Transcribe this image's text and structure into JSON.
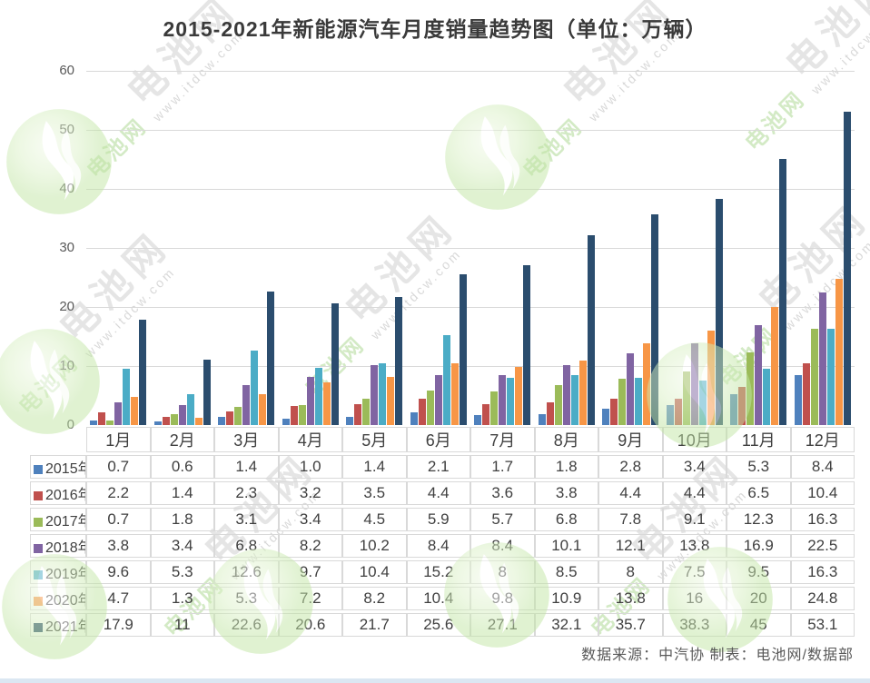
{
  "title": "2015-2021年新能源汽车月度销量趋势图（单位：万辆）",
  "chart_data": {
    "type": "bar",
    "title": "2015-2021年新能源汽车月度销量趋势图",
    "unit": "万辆",
    "categories": [
      "1月",
      "2月",
      "3月",
      "4月",
      "5月",
      "6月",
      "7月",
      "8月",
      "9月",
      "10月",
      "11月",
      "12月"
    ],
    "series": [
      {
        "name": "2015年",
        "color": "#4F81BD",
        "values": [
          0.7,
          0.6,
          1.4,
          1.0,
          1.4,
          2.1,
          1.7,
          1.8,
          2.8,
          3.4,
          5.3,
          8.4
        ]
      },
      {
        "name": "2016年",
        "color": "#C0504D",
        "values": [
          2.2,
          1.4,
          2.3,
          3.2,
          3.5,
          4.4,
          3.6,
          3.8,
          4.4,
          4.4,
          6.5,
          10.4
        ]
      },
      {
        "name": "2017年",
        "color": "#9BBB59",
        "values": [
          0.7,
          1.8,
          3.1,
          3.4,
          4.5,
          5.9,
          5.7,
          6.8,
          7.8,
          9.1,
          12.3,
          16.3
        ]
      },
      {
        "name": "2018年",
        "color": "#8064A2",
        "values": [
          3.8,
          3.4,
          6.8,
          8.2,
          10.2,
          8.4,
          8.4,
          10.1,
          12.1,
          13.8,
          16.9,
          22.5
        ]
      },
      {
        "name": "2019年",
        "color": "#4BACC6",
        "values": [
          9.6,
          5.3,
          12.6,
          9.7,
          10.4,
          15.2,
          8,
          8.5,
          8,
          7.5,
          9.5,
          16.3
        ]
      },
      {
        "name": "2020年",
        "color": "#F79646",
        "values": [
          4.7,
          1.3,
          5.3,
          7.2,
          8.2,
          10.4,
          9.8,
          10.9,
          13.8,
          16,
          20,
          24.8
        ]
      },
      {
        "name": "2021年",
        "color": "#2B4D6E",
        "values": [
          17.9,
          11,
          22.6,
          20.6,
          21.7,
          25.6,
          27.1,
          32.1,
          35.7,
          38.3,
          45,
          53.1
        ]
      }
    ],
    "ylim": [
      0,
      60
    ],
    "yticks": [
      0,
      10,
      20,
      30,
      40,
      50,
      60
    ],
    "grid": true,
    "legend_position": "table-left-column"
  },
  "table": {
    "display_rows": [
      [
        "0.7",
        "0.6",
        "1.4",
        "1.0",
        "1.4",
        "2.1",
        "1.7",
        "1.8",
        "2.8",
        "3.4",
        "5.3",
        "8.4"
      ],
      [
        "2.2",
        "1.4",
        "2.3",
        "3.2",
        "3.5",
        "4.4",
        "3.6",
        "3.8",
        "4.4",
        "4.4",
        "6.5",
        "10.4"
      ],
      [
        "0.7",
        "1.8",
        "3.1",
        "3.4",
        "4.5",
        "5.9",
        "5.7",
        "6.8",
        "7.8",
        "9.1",
        "12.3",
        "16.3"
      ],
      [
        "3.8",
        "3.4",
        "6.8",
        "8.2",
        "10.2",
        "8.4",
        "8.4",
        "10.1",
        "12.1",
        "13.8",
        "16.9",
        "22.5"
      ],
      [
        "9.6",
        "5.3",
        "12.6",
        "9.7",
        "10.4",
        "15.2",
        "8",
        "8.5",
        "8",
        "7.5",
        "9.5",
        "16.3"
      ],
      [
        "4.7",
        "1.3",
        "5.3",
        "7.2",
        "8.2",
        "10.4",
        "9.8",
        "10.9",
        "13.8",
        "16",
        "20",
        "24.8"
      ],
      [
        "17.9",
        "11",
        "22.6",
        "20.6",
        "21.7",
        "25.6",
        "27.1",
        "32.1",
        "35.7",
        "38.3",
        "45",
        "53.1"
      ]
    ]
  },
  "footer": {
    "text": "数据来源：中汽协 制表：电池网/数据部"
  },
  "watermark": {
    "brand": "电池网",
    "url": "www.itdcw.com"
  }
}
